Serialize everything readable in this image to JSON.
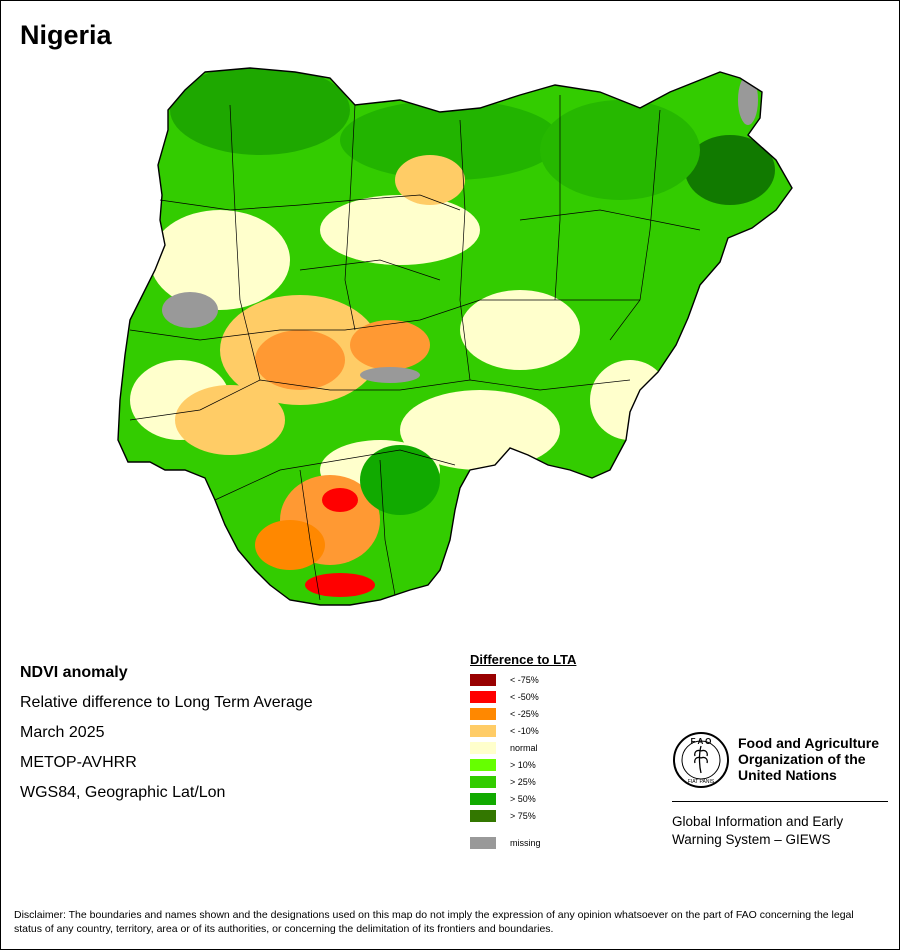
{
  "map": {
    "title": "Nigeria",
    "colors": {
      "base_green": "#33cc00",
      "dark_green": "#118a00",
      "bright_green": "#66ff00",
      "normal": "#ffffcc",
      "neg10": "#ffcc66",
      "neg25": "#ff8800",
      "neg50": "#ff0000",
      "neg75": "#990000",
      "missing": "#999999"
    }
  },
  "info": {
    "product": "NDVI anomaly",
    "description": "Relative difference to Long Term Average",
    "period": "March 2025",
    "sensor": "METOP-AVHRR",
    "projection": "WGS84, Geographic Lat/Lon"
  },
  "legend": {
    "title": "Difference to LTA",
    "items": [
      {
        "label": "< -75%",
        "color": "#990000"
      },
      {
        "label": "< -50%",
        "color": "#ff0000"
      },
      {
        "label": "< -25%",
        "color": "#ff8800"
      },
      {
        "label": "< -10%",
        "color": "#ffcc66"
      },
      {
        "label": "normal",
        "color": "#ffffcc"
      },
      {
        "label": "> 10%",
        "color": "#66ff00"
      },
      {
        "label": "> 25%",
        "color": "#33cc00"
      },
      {
        "label": "> 50%",
        "color": "#11aa00"
      },
      {
        "label": "> 75%",
        "color": "#337700"
      }
    ],
    "missing": {
      "label": "missing",
      "color": "#999999"
    }
  },
  "org": {
    "name_line1": "Food and Agriculture",
    "name_line2": "Organization of the",
    "name_line3": "United Nations",
    "logo_letters": "F A O",
    "logo_motto": "FIAT PANIS",
    "system_line1": "Global Information and Early",
    "system_line2": "Warning System – GIEWS"
  },
  "disclaimer": "Disclaimer: The boundaries and names shown and the designations used on this map do not imply the expression of any opinion whatsoever on the part of FAO concerning the legal status of any country, territory, area or of its authorities, or concerning the delimitation of its frontiers and boundaries."
}
